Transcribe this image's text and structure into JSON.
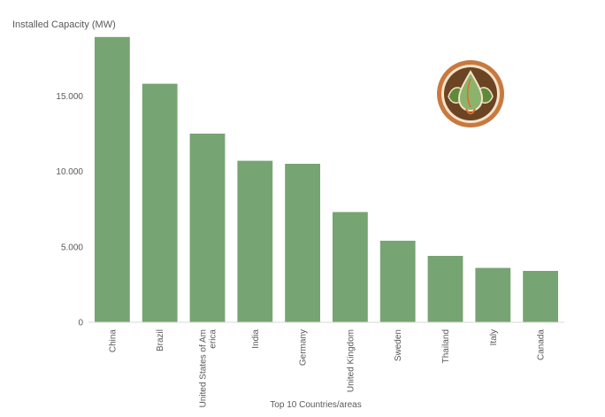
{
  "chart_data": {
    "type": "bar",
    "ylabel": "Installed Capacity (MW)",
    "xlabel": "Top 10 Countries/areas",
    "categories": [
      "China",
      "Brazil",
      "United States of Am\nerica",
      "India",
      "Germany",
      "United Kingdom",
      "Sweden",
      "Thailand",
      "Italy",
      "Canada"
    ],
    "values": [
      18900,
      15800,
      12500,
      10700,
      10500,
      7300,
      5400,
      4400,
      3600,
      3400
    ],
    "yticks": [
      {
        "value": 0,
        "label": "0"
      },
      {
        "value": 5000,
        "label": "5.000"
      },
      {
        "value": 10000,
        "label": "10.000"
      },
      {
        "value": 15000,
        "label": "15.000"
      }
    ],
    "ylim": [
      0,
      20000
    ],
    "grid": false,
    "legend": "none",
    "bar_color": "#76a472"
  },
  "logo": {
    "icon": "leaf-drop-icon",
    "outer": "#c8793f",
    "inner": "#6b4423",
    "leaf": "#8bb36b"
  }
}
